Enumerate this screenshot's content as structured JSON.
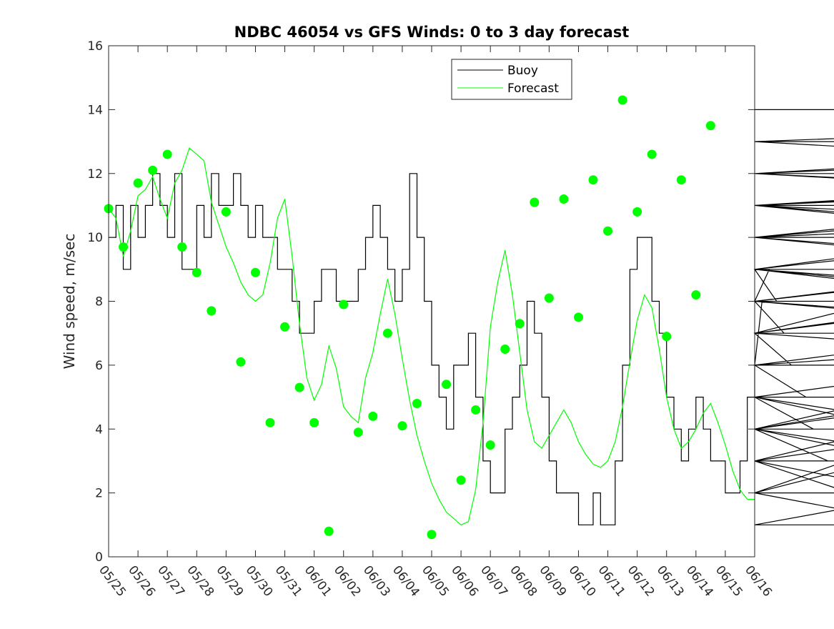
{
  "chart_data": {
    "type": "line",
    "title": "NDBC 46054 vs GFS Winds: 0 to 3 day forecast",
    "xlabel": "",
    "ylabel": "Wind speed, m/sec",
    "ylim": [
      0,
      16
    ],
    "xlim_days": [
      "05/25",
      "06/16"
    ],
    "yticks": [
      0,
      2,
      4,
      6,
      8,
      10,
      12,
      14,
      16
    ],
    "xtick_labels": [
      "05/25",
      "05/26",
      "05/27",
      "05/28",
      "05/29",
      "05/30",
      "05/31",
      "06/01",
      "06/02",
      "06/03",
      "06/04",
      "06/05",
      "06/06",
      "06/07",
      "06/08",
      "06/09",
      "06/10",
      "06/11",
      "06/12",
      "06/13",
      "06/14",
      "06/15",
      "06/16"
    ],
    "grid": false,
    "legend_position": "top-right",
    "series": [
      {
        "name": "Buoy",
        "color": "#000000",
        "step_hours": 6,
        "values": [
          10,
          11,
          9,
          11,
          10,
          11,
          12,
          11,
          10,
          12,
          9,
          9,
          11,
          10,
          12,
          11,
          11,
          12,
          11,
          10,
          11,
          10,
          10,
          9,
          9,
          8,
          7,
          7,
          8,
          9,
          9,
          8,
          8,
          8,
          9,
          10,
          11,
          10,
          9,
          8,
          9,
          12,
          10,
          8,
          6,
          5,
          4,
          6,
          6,
          7,
          5,
          3,
          2,
          2,
          4,
          5,
          6,
          8,
          7,
          5,
          3,
          2,
          2,
          2,
          1,
          1,
          2,
          1,
          1,
          3,
          6,
          9,
          10,
          10,
          8,
          7,
          5,
          4,
          3,
          4,
          5,
          4,
          3,
          3,
          2,
          2,
          3,
          5,
          6,
          8,
          9,
          8,
          7,
          6,
          6,
          5,
          4,
          4,
          3,
          3,
          3,
          2,
          2,
          2,
          2,
          3,
          4,
          5,
          4,
          3,
          2,
          1,
          2,
          4,
          5,
          5,
          4,
          3,
          4,
          5,
          6,
          6,
          7,
          8,
          9,
          9,
          8,
          9,
          10,
          10,
          11,
          11,
          10,
          10,
          9,
          8,
          8,
          8,
          7,
          7,
          10,
          11,
          11,
          10,
          10,
          9,
          9,
          8,
          7,
          6,
          6,
          7,
          9,
          11,
          11,
          11,
          11,
          11,
          11,
          12,
          12,
          12,
          13,
          13,
          12,
          11,
          12,
          12,
          12,
          12,
          12,
          12,
          11,
          11,
          11,
          11,
          12,
          11,
          11,
          10,
          10,
          10,
          10,
          10,
          10,
          11,
          12,
          12,
          12,
          12,
          12,
          13,
          13,
          13,
          13,
          13,
          13,
          13,
          13,
          13,
          13,
          13,
          13,
          13,
          13,
          14
        ]
      },
      {
        "name": "Forecast",
        "color": "#00ff00",
        "step_hours": 6,
        "values": [
          10.9,
          10.6,
          9.4,
          10.2,
          11.3,
          11.5,
          11.9,
          11.2,
          10.6,
          11.7,
          12.1,
          12.8,
          12.6,
          12.4,
          11.1,
          10.4,
          9.7,
          9.2,
          8.6,
          8.2,
          8.0,
          8.2,
          9.2,
          10.6,
          11.2,
          9.4,
          7.3,
          5.6,
          4.9,
          5.4,
          6.6,
          5.9,
          4.7,
          4.4,
          4.2,
          5.6,
          6.4,
          7.6,
          8.7,
          7.6,
          6.2,
          4.9,
          3.8,
          3.0,
          2.3,
          1.8,
          1.4,
          1.2,
          1.0,
          1.1,
          2.1,
          4.2,
          7.2,
          8.6,
          9.6,
          8.2,
          6.4,
          4.6,
          3.6,
          3.4,
          3.8,
          4.2,
          4.6,
          4.2,
          3.6,
          3.2,
          2.9,
          2.8,
          3.0,
          3.6,
          4.7,
          6.1,
          7.4,
          8.2,
          7.8,
          6.5,
          5.0,
          4.0,
          3.4,
          3.6,
          4.0,
          4.5,
          4.8,
          4.2,
          3.5,
          2.7,
          2.1,
          1.8,
          1.8,
          2.1,
          2.5,
          3.4,
          4.6,
          5.5,
          4.9,
          3.9,
          3.0,
          2.5,
          2.4,
          2.8,
          3.6,
          4.4,
          4.9,
          5.4,
          5.1,
          4.7,
          5.0,
          5.7,
          6.3,
          6.6,
          7.0,
          7.3,
          7.5,
          8.0,
          8.8,
          9.6,
          10.3,
          10.9,
          11.1,
          10.6,
          9.6,
          8.7,
          8.1,
          8.3,
          9.2,
          10.4,
          11.2,
          11.0,
          9.5,
          8.3,
          7.7,
          7.9,
          8.8,
          10.1,
          11.2,
          11.8,
          11.5,
          10.6,
          10.3,
          10.9,
          11.6,
          12.3,
          12.9,
          13.6,
          14.2,
          13.9,
          12.8,
          11.7,
          11.3,
          11.2,
          11.5,
          12.1,
          12.6,
          11.8,
          10.6,
          9.8,
          9.6,
          10.1,
          11.3,
          11.7,
          11.1,
          9.8,
          8.4,
          7.2,
          7.1,
          8.5,
          10.6,
          11.7,
          12.0,
          11.6,
          10.7,
          9.6,
          8.7,
          8.2,
          8.6,
          9.8,
          11.2,
          12.3,
          12.9,
          13.2,
          13.4,
          12.9,
          12.3,
          12.0,
          12.4,
          13.1,
          13.8,
          14.0,
          13.6
        ]
      }
    ],
    "forecast_markers": {
      "name": "Forecast analysis points",
      "color": "#00ff00",
      "x_day_offsets": [
        0,
        0.5,
        1,
        1.5,
        2,
        2.5,
        3,
        3.5,
        4,
        4.5,
        5,
        5.5,
        6,
        6.5,
        7,
        7.5,
        8,
        8.5,
        9,
        9.5,
        10,
        10.5,
        11,
        11.5,
        12,
        12.5,
        13,
        13.5,
        14,
        14.5,
        15,
        15.5,
        16,
        16.5,
        17,
        17.5,
        18,
        18.5,
        19,
        19.5,
        20,
        20.5,
        21,
        21.5
      ],
      "values": [
        10.9,
        9.7,
        11.7,
        12.1,
        12.6,
        9.7,
        8.9,
        7.7,
        10.8,
        6.1,
        8.9,
        4.2,
        7.2,
        5.3,
        4.2,
        0.8,
        7.9,
        3.9,
        4.4,
        7.0,
        4.1,
        4.8,
        0.7,
        5.4,
        2.4,
        4.6,
        3.5,
        6.5,
        7.3,
        11.1,
        8.1,
        11.2,
        7.5,
        11.8,
        10.2,
        14.3,
        10.8,
        12.6,
        6.9,
        11.8,
        8.2,
        13.5,
        null,
        null
      ]
    }
  }
}
